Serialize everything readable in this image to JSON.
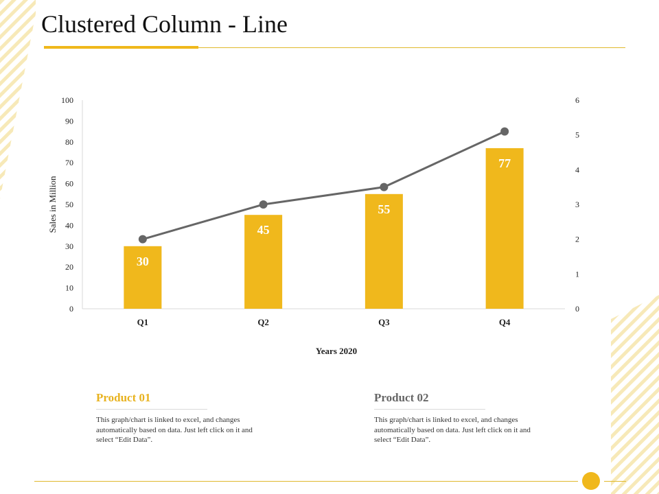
{
  "slide": {
    "title": "Clustered Column - Line",
    "colors": {
      "accent": "#f0b81c",
      "line": "#666666",
      "rule": "#e0b82a"
    }
  },
  "chart_data": {
    "type": "bar+line",
    "categories": [
      "Q1",
      "Q2",
      "Q3",
      "Q4"
    ],
    "series": [
      {
        "name": "Product 01",
        "type": "bar",
        "axis": "left",
        "values": [
          30,
          45,
          55,
          77
        ],
        "color": "#f0b81c"
      },
      {
        "name": "Product 02",
        "type": "line",
        "axis": "right",
        "values": [
          2,
          3,
          3.5,
          5.1
        ],
        "color": "#666666"
      }
    ],
    "title": "",
    "xlabel": "Years 2020",
    "ylabel": "Sales in Million",
    "ylim": [
      0,
      100
    ],
    "y_ticks": [
      0,
      10,
      20,
      30,
      40,
      50,
      60,
      70,
      80,
      90,
      100
    ],
    "y2lim": [
      0,
      6
    ],
    "y2_ticks": [
      0,
      1,
      2,
      3,
      4,
      5,
      6
    ],
    "data_labels": [
      "30",
      "45",
      "55",
      "77"
    ],
    "grid": false
  },
  "cards": [
    {
      "title": "Product 01",
      "text": "This graph/chart is linked to excel, and changes automatically based on data. Just left click on it and select “Edit Data”."
    },
    {
      "title": "Product 02",
      "text": "This graph/chart is linked to excel, and changes automatically based on data. Just left click on it and select “Edit Data”."
    }
  ]
}
